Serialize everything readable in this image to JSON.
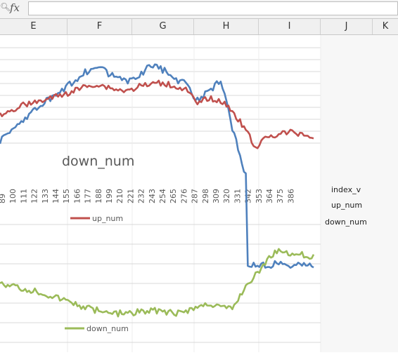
{
  "formula_bar": {
    "fx_label": "fx",
    "value": ""
  },
  "columns": [
    "E",
    "F",
    "G",
    "H",
    "I",
    "J",
    "K"
  ],
  "side_labels": [
    "index_v",
    "up_num",
    "down_num"
  ],
  "chart_data": [
    {
      "type": "line",
      "title": "down_num",
      "x": [
        89,
        100,
        111,
        122,
        133,
        144,
        155,
        166,
        177,
        188,
        199,
        210,
        221,
        232,
        243,
        254,
        265,
        276,
        287,
        298,
        309,
        320,
        331,
        342,
        353,
        364,
        375,
        386
      ],
      "series": [
        {
          "name": "up_num",
          "color": "#c0504d",
          "values": [
            38,
            40,
            44,
            45,
            47,
            49,
            51,
            54,
            56,
            55,
            53,
            52,
            55,
            56,
            57,
            55,
            53,
            44,
            48,
            46,
            40,
            30,
            18,
            24,
            26,
            27,
            26,
            24
          ]
        },
        {
          "name": "index_v",
          "color": "#4f81bd",
          "values": [
            22,
            28,
            35,
            40,
            46,
            50,
            56,
            62,
            66,
            64,
            60,
            58,
            62,
            68,
            65,
            60,
            56,
            46,
            52,
            58,
            30,
            5,
            -18,
            -18,
            -18,
            -18,
            -18,
            -18
          ]
        }
      ]
    },
    {
      "type": "line",
      "title": "",
      "series": [
        {
          "name": "down_num",
          "color": "#9bbb59",
          "values": [
            26,
            24,
            22,
            21,
            19,
            17,
            15,
            13,
            11,
            10,
            9,
            9,
            10,
            11,
            10,
            9,
            10,
            12,
            14,
            12,
            11,
            22,
            30,
            38,
            44,
            42,
            41,
            40
          ]
        }
      ]
    }
  ]
}
